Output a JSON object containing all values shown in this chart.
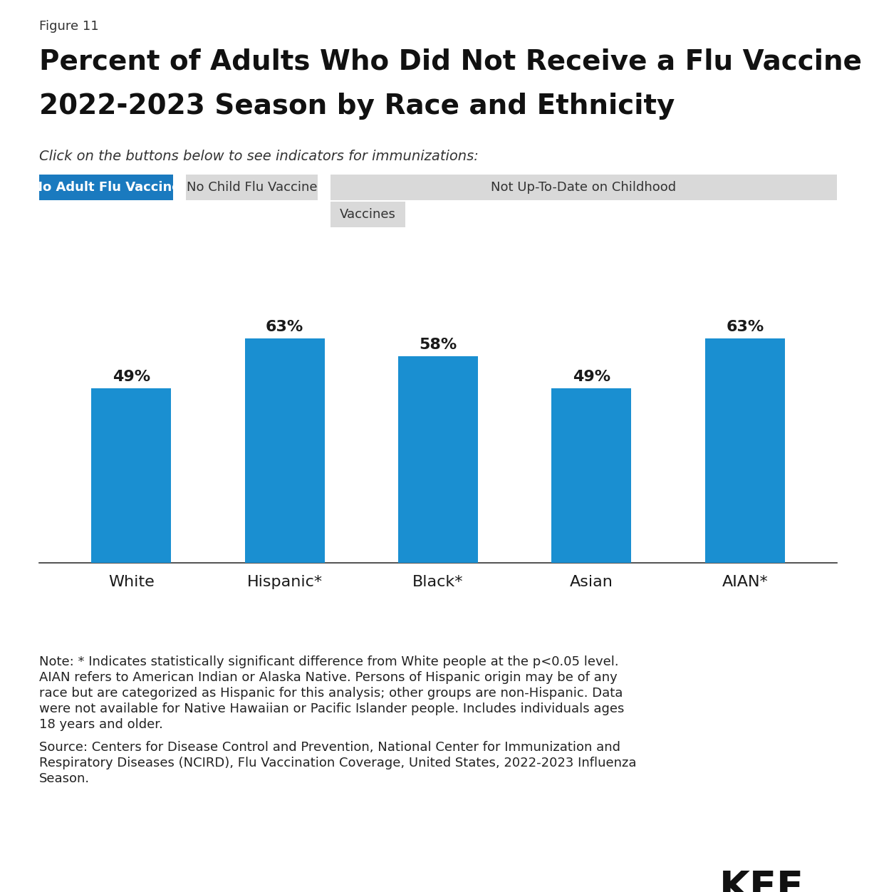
{
  "figure_label": "Figure 11",
  "title_line1": "Percent of Adults Who Did Not Receive a Flu Vaccine in the",
  "title_line2": "2022-2023 Season by Race and Ethnicity",
  "subtitle_italic": "Click on the buttons below to see indicators for immunizations:",
  "btn1_label": "No Adult Flu Vaccine",
  "btn2_label": "No Child Flu Vaccine",
  "btn3_label": "Not Up-To-Date on Childhood",
  "btn3_label2": "Vaccines",
  "categories": [
    "White",
    "Hispanic*",
    "Black*",
    "Asian",
    "AIAN*"
  ],
  "values": [
    49,
    63,
    58,
    49,
    63
  ],
  "bar_color": "#1a8fd1",
  "bar_labels": [
    "49%",
    "63%",
    "58%",
    "49%",
    "63%"
  ],
  "ylim": [
    0,
    80
  ],
  "note_line1": "Note: * Indicates statistically significant difference from White people at the p<0.05 level.",
  "note_line2": "AIAN refers to American Indian or Alaska Native. Persons of Hispanic origin may be of any",
  "note_line3": "race but are categorized as Hispanic for this analysis; other groups are non-Hispanic. Data",
  "note_line4": "were not available for Native Hawaiian or Pacific Islander people. Includes individuals ages",
  "note_line5": "18 years and older.",
  "source_line1": "Source: Centers for Disease Control and Prevention, National Center for Immunization and",
  "source_line2": "Respiratory Diseases (NCIRD), Flu Vaccination Coverage, United States, 2022-2023 Influenza",
  "source_line3": "Season.",
  "kff_label": "KFF",
  "bg_color": "#ffffff",
  "btn1_bg": "#1a7abf",
  "btn1_fg": "#ffffff",
  "btn2_bg": "#d9d9d9",
  "btn2_fg": "#333333",
  "btn3_bg": "#d9d9d9",
  "btn3_fg": "#333333",
  "fig_label_fontsize": 13,
  "title_fontsize": 28,
  "subtitle_fontsize": 14,
  "bar_label_fontsize": 16,
  "tick_fontsize": 16,
  "note_fontsize": 13,
  "source_fontsize": 13,
  "kff_fontsize": 40
}
